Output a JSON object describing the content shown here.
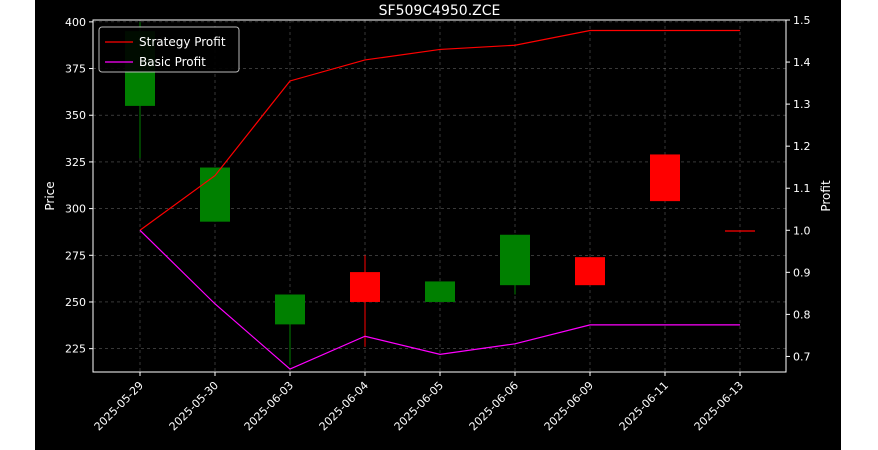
{
  "chart_data": {
    "type": "candlestick",
    "title": "SF509C4950.ZCE",
    "xlabel": "",
    "ylabel_left": "Price",
    "ylabel_right": "Profit",
    "categories": [
      "2025-05-29",
      "2025-05-30",
      "2025-06-03",
      "2025-06-04",
      "2025-06-05",
      "2025-06-06",
      "2025-06-09",
      "2025-06-11",
      "2025-06-13"
    ],
    "candles": [
      {
        "open": 355,
        "close": 395,
        "high": 400,
        "low": 327,
        "color": "green"
      },
      {
        "open": 293,
        "close": 322,
        "high": 322,
        "low": 293,
        "color": "green"
      },
      {
        "open": 238,
        "close": 254,
        "high": 254,
        "low": 217,
        "color": "green"
      },
      {
        "open": 266,
        "close": 250,
        "high": 275,
        "low": 226,
        "color": "red"
      },
      {
        "open": 250,
        "close": 261,
        "high": 261,
        "low": 250,
        "color": "green"
      },
      {
        "open": 259,
        "close": 286,
        "high": 286,
        "low": 254,
        "color": "green"
      },
      {
        "open": 274,
        "close": 259,
        "high": 274,
        "low": 259,
        "color": "red"
      },
      {
        "open": 329,
        "close": 304,
        "high": 329,
        "low": 304,
        "color": "red"
      },
      {
        "open": 288,
        "close": 288,
        "high": 288,
        "low": 288,
        "color": "red"
      }
    ],
    "series": [
      {
        "name": "Strategy Profit",
        "color": "#ff0000",
        "axis": "right",
        "values": [
          1.0,
          1.13,
          1.355,
          1.405,
          1.43,
          1.44,
          1.475,
          1.475,
          1.475
        ]
      },
      {
        "name": "Basic Profit",
        "color": "#ff00ff",
        "axis": "right",
        "values": [
          1.0,
          0.825,
          0.67,
          0.748,
          0.705,
          0.73,
          0.775,
          0.775,
          0.775
        ]
      }
    ],
    "ylim_left": [
      212.5,
      401
    ],
    "ylim_right": [
      0.663,
      1.5
    ],
    "yticks_left": [
      "225",
      "250",
      "275",
      "300",
      "325",
      "350",
      "375",
      "400"
    ],
    "yticks_right": [
      "0.7",
      "0.8",
      "0.9",
      "1.0",
      "1.1",
      "1.2",
      "1.3",
      "1.4",
      "1.5"
    ],
    "grid": true,
    "legend_position": "top-left",
    "colors": {
      "background": "#000000",
      "foreground": "#ffffff",
      "up": "#008000",
      "down": "#ff0000",
      "grid": "#808080"
    }
  }
}
